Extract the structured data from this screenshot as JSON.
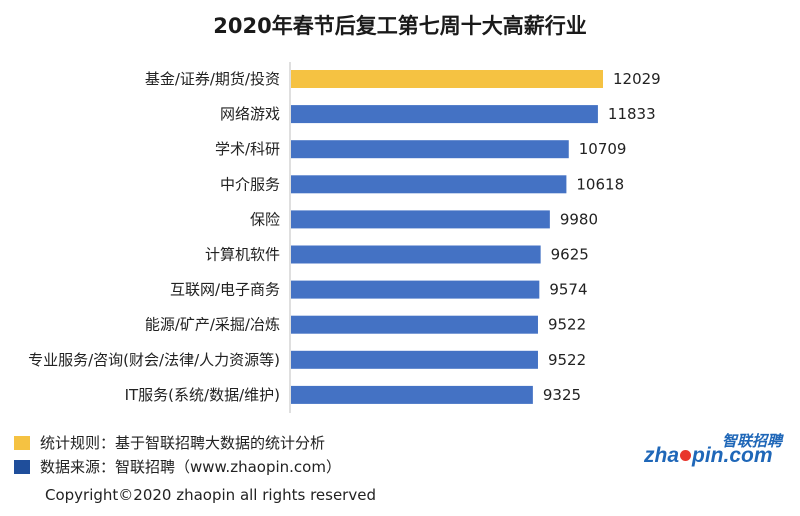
{
  "title": "2020年春节后复工第七周十大高薪行业",
  "chart_data": {
    "type": "bar",
    "orientation": "horizontal",
    "categories": [
      "基金/证券/期货/投资",
      "网络游戏",
      "学术/科研",
      "中介服务",
      "保险",
      "计算机软件",
      "互联网/电子商务",
      "能源/矿产/采掘/冶炼",
      "专业服务/咨询(财会/法律/人力资源等)",
      "IT服务(系统/数据/维护)"
    ],
    "values": [
      12029,
      11833,
      10709,
      10618,
      9980,
      9625,
      9574,
      9522,
      9522,
      9325
    ],
    "value_labels": [
      "12029",
      "11833",
      "10709",
      "10618",
      "9980",
      "9625",
      "9574",
      "9522",
      "9522",
      "9325"
    ],
    "highlight_index": 0,
    "xlim": [
      0,
      12500
    ],
    "colors": {
      "highlight": "#f5c242",
      "default": "#4472c4"
    }
  },
  "legend": {
    "items": [
      {
        "label": "统计规则：基于智联招聘大数据的统计分析",
        "color": "#f5c242"
      },
      {
        "label": "数据来源：智联招聘（www.zhaopin.com）",
        "color": "#1f4e9b"
      }
    ]
  },
  "logo": {
    "cn_text": "智联招聘",
    "en_text_a": "zha",
    "en_text_b": "pin.com"
  },
  "footer": {
    "copyright": "Copyright©2020 zhaopin all rights reserved"
  }
}
